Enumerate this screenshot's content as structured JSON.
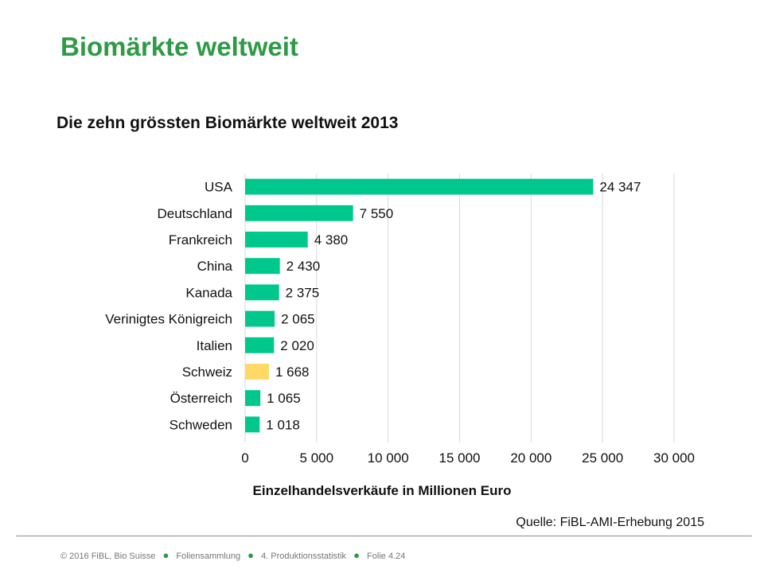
{
  "slide": {
    "title": "Biomärkte weltweit"
  },
  "footer": {
    "copyright": "© 2016 FiBL, Bio Suisse",
    "collection": "Foliensammlung",
    "chapter": "4. Produktionsstatistik",
    "slide_number": "Folie 4.24"
  },
  "colors": {
    "title": "#2e9a46",
    "bar_default": "#00c88c",
    "bar_highlight": "#ffd966",
    "grid": "#d9d9d9",
    "footer_dot": "#2e9a46"
  },
  "chart_data": {
    "type": "bar",
    "orientation": "horizontal",
    "title": "Die zehn grössten Biomärkte weltweit 2013",
    "xlabel": "Einzelhandelsverkäufe in Millionen Euro",
    "ylabel": "",
    "source": "Quelle: FiBL-AMI-Erhebung 2015",
    "categories": [
      "USA",
      "Deutschland",
      "Frankreich",
      "China",
      "Kanada",
      "Verinigtes Königreich",
      "Italien",
      "Schweiz",
      "Österreich",
      "Schweden"
    ],
    "values": [
      24347,
      7550,
      4380,
      2430,
      2375,
      2065,
      2020,
      1668,
      1065,
      1018
    ],
    "value_labels": [
      "24 347",
      "7 550",
      "4 380",
      "2 430",
      "2 375",
      "2 065",
      "2 020",
      "1 668",
      "1 065",
      "1 018"
    ],
    "highlight": [
      "Schweiz"
    ],
    "xlim": [
      0,
      30000
    ],
    "xticks": [
      0,
      5000,
      10000,
      15000,
      20000,
      25000,
      30000
    ],
    "xtick_labels": [
      "0",
      "5 000",
      "10 000",
      "15 000",
      "20 000",
      "25 000",
      "30 000"
    ],
    "grid": true,
    "legend": "none"
  }
}
